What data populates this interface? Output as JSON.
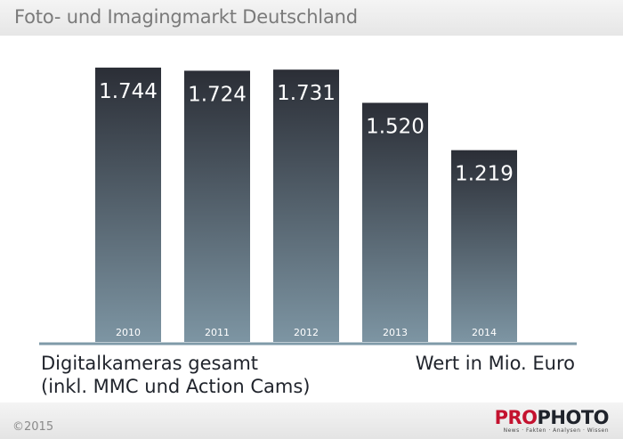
{
  "header": {
    "title": "Foto- und Imagingmarkt Deutschland"
  },
  "captions": {
    "left_line1": "Digitalkameras gesamt",
    "left_line2": "(inkl. MMC und Action Cams)",
    "right": "Wert in Mio. Euro"
  },
  "footer": {
    "copyright": "©2015",
    "logo_pro": "PRO",
    "logo_photo": "PHOTO",
    "logo_tagline": "News · Fakten · Analysen · Wissen"
  },
  "colors": {
    "bar_top": "#2b2e36",
    "bar_bottom": "#7d95a3",
    "axis": "#7f9aa8"
  },
  "chart_data": {
    "type": "bar",
    "categories": [
      "2010",
      "2011",
      "2012",
      "2013",
      "2014"
    ],
    "values": [
      1744,
      1724,
      1731,
      1520,
      1219
    ],
    "value_labels": [
      "1.744",
      "1.724",
      "1.731",
      "1.520",
      "1.219"
    ],
    "title": "Foto- und Imagingmarkt Deutschland",
    "ylabel": "Wert in Mio. Euro",
    "ylim": [
      0,
      1800
    ],
    "grid": false,
    "legend": "none"
  }
}
